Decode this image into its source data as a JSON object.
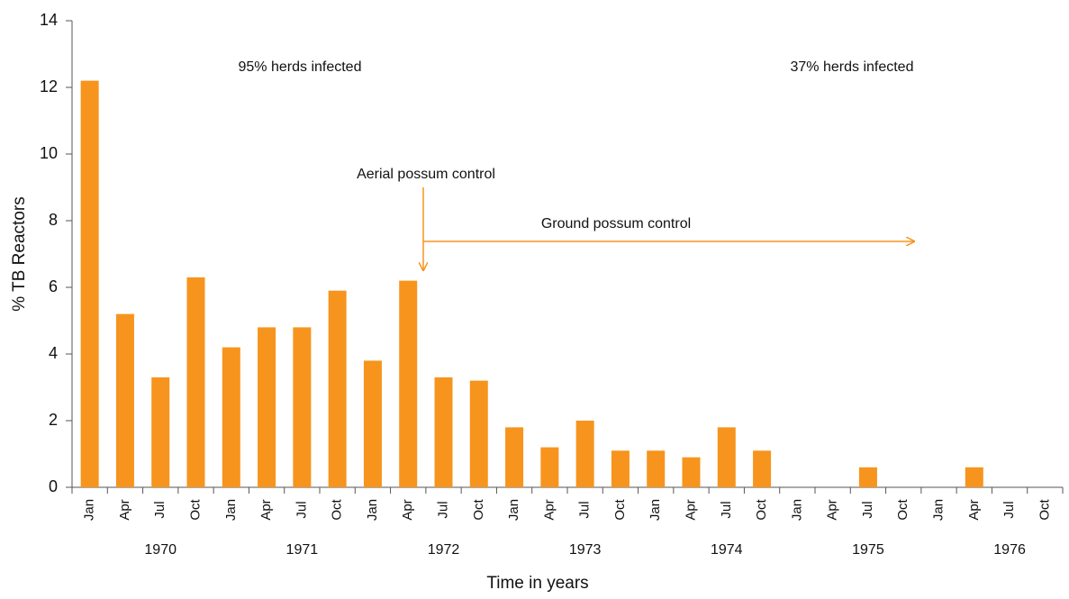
{
  "chart_data": {
    "type": "bar",
    "ylabel": "% TB Reactors",
    "xlabel": "Time in years",
    "categories": [
      "Jan",
      "Apr",
      "Jul",
      "Oct",
      "Jan",
      "Apr",
      "Jul",
      "Oct",
      "Jan",
      "Apr",
      "Jul",
      "Oct",
      "Jan",
      "Apr",
      "Jul",
      "Oct",
      "Jan",
      "Apr",
      "Jul",
      "Oct",
      "Jan",
      "Apr",
      "Jul",
      "Oct",
      "Jan",
      "Apr",
      "Jul",
      "Oct"
    ],
    "groups": [
      "1970",
      "1971",
      "1972",
      "1973",
      "1974",
      "1975",
      "1976"
    ],
    "values": [
      12.2,
      5.2,
      3.3,
      6.3,
      4.2,
      4.8,
      4.8,
      5.9,
      3.8,
      6.2,
      3.3,
      3.2,
      1.8,
      1.2,
      2.0,
      1.1,
      1.1,
      0.9,
      1.8,
      1.1,
      0,
      0,
      0.6,
      0,
      0,
      0.6,
      0,
      0
    ],
    "color": "#f7941d",
    "ylim": [
      0,
      14
    ],
    "yticks": [
      0,
      2,
      4,
      6,
      8,
      10,
      12,
      14
    ],
    "annotations": [
      "95% herds infected",
      "37% herds infected",
      "Aerial possum control",
      "Ground possum control"
    ]
  }
}
